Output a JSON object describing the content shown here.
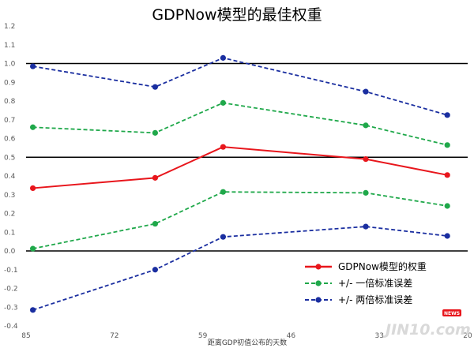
{
  "chart_data": {
    "type": "line",
    "title": "GDPNow模型的最佳权重",
    "xlabel": "距离GDP初值公布的天数",
    "ylabel": "",
    "xlim": [
      85,
      20
    ],
    "ylim": [
      -0.4,
      1.2
    ],
    "x_ticks": [
      "85",
      "72",
      "59",
      "46",
      "33",
      "20"
    ],
    "y_ticks": [
      "-0.4",
      "-0.3",
      "-0.2",
      "-0.1",
      "0.0",
      "0.1",
      "0.2",
      "0.3",
      "0.4",
      "0.5",
      "0.6",
      "0.7",
      "0.8",
      "0.9",
      "1.0",
      "1.1",
      "1.2"
    ],
    "reference_lines": [
      0.0,
      0.5,
      1.0
    ],
    "x": [
      84,
      66,
      56,
      35,
      23
    ],
    "series": [
      {
        "name": "GDPNow模型的权重",
        "color": "#e8161c",
        "style": "solid",
        "values": [
          0.335,
          0.39,
          0.555,
          0.49,
          0.405
        ]
      },
      {
        "name": "+/- 一倍标准误差",
        "color": "#1fa84a",
        "style": "dashed",
        "values": [
          0.66,
          0.63,
          0.79,
          0.67,
          0.565
        ]
      },
      {
        "name": "",
        "color": "#1fa84a",
        "style": "dashed",
        "values": [
          0.012,
          0.145,
          0.315,
          0.31,
          0.24
        ]
      },
      {
        "name": "+/- 两倍标准误差",
        "color": "#1a2ea0",
        "style": "dashed",
        "values": [
          0.985,
          0.875,
          1.03,
          0.85,
          0.725
        ]
      },
      {
        "name": "",
        "color": "#1a2ea0",
        "style": "dashed",
        "values": [
          -0.315,
          -0.1,
          0.075,
          0.13,
          0.08
        ]
      }
    ],
    "legend_position": "bottom-right",
    "grid": false
  },
  "watermark": {
    "text": "JIN10.com",
    "badge": "NEWS",
    "badge_color": "#e8161c"
  }
}
